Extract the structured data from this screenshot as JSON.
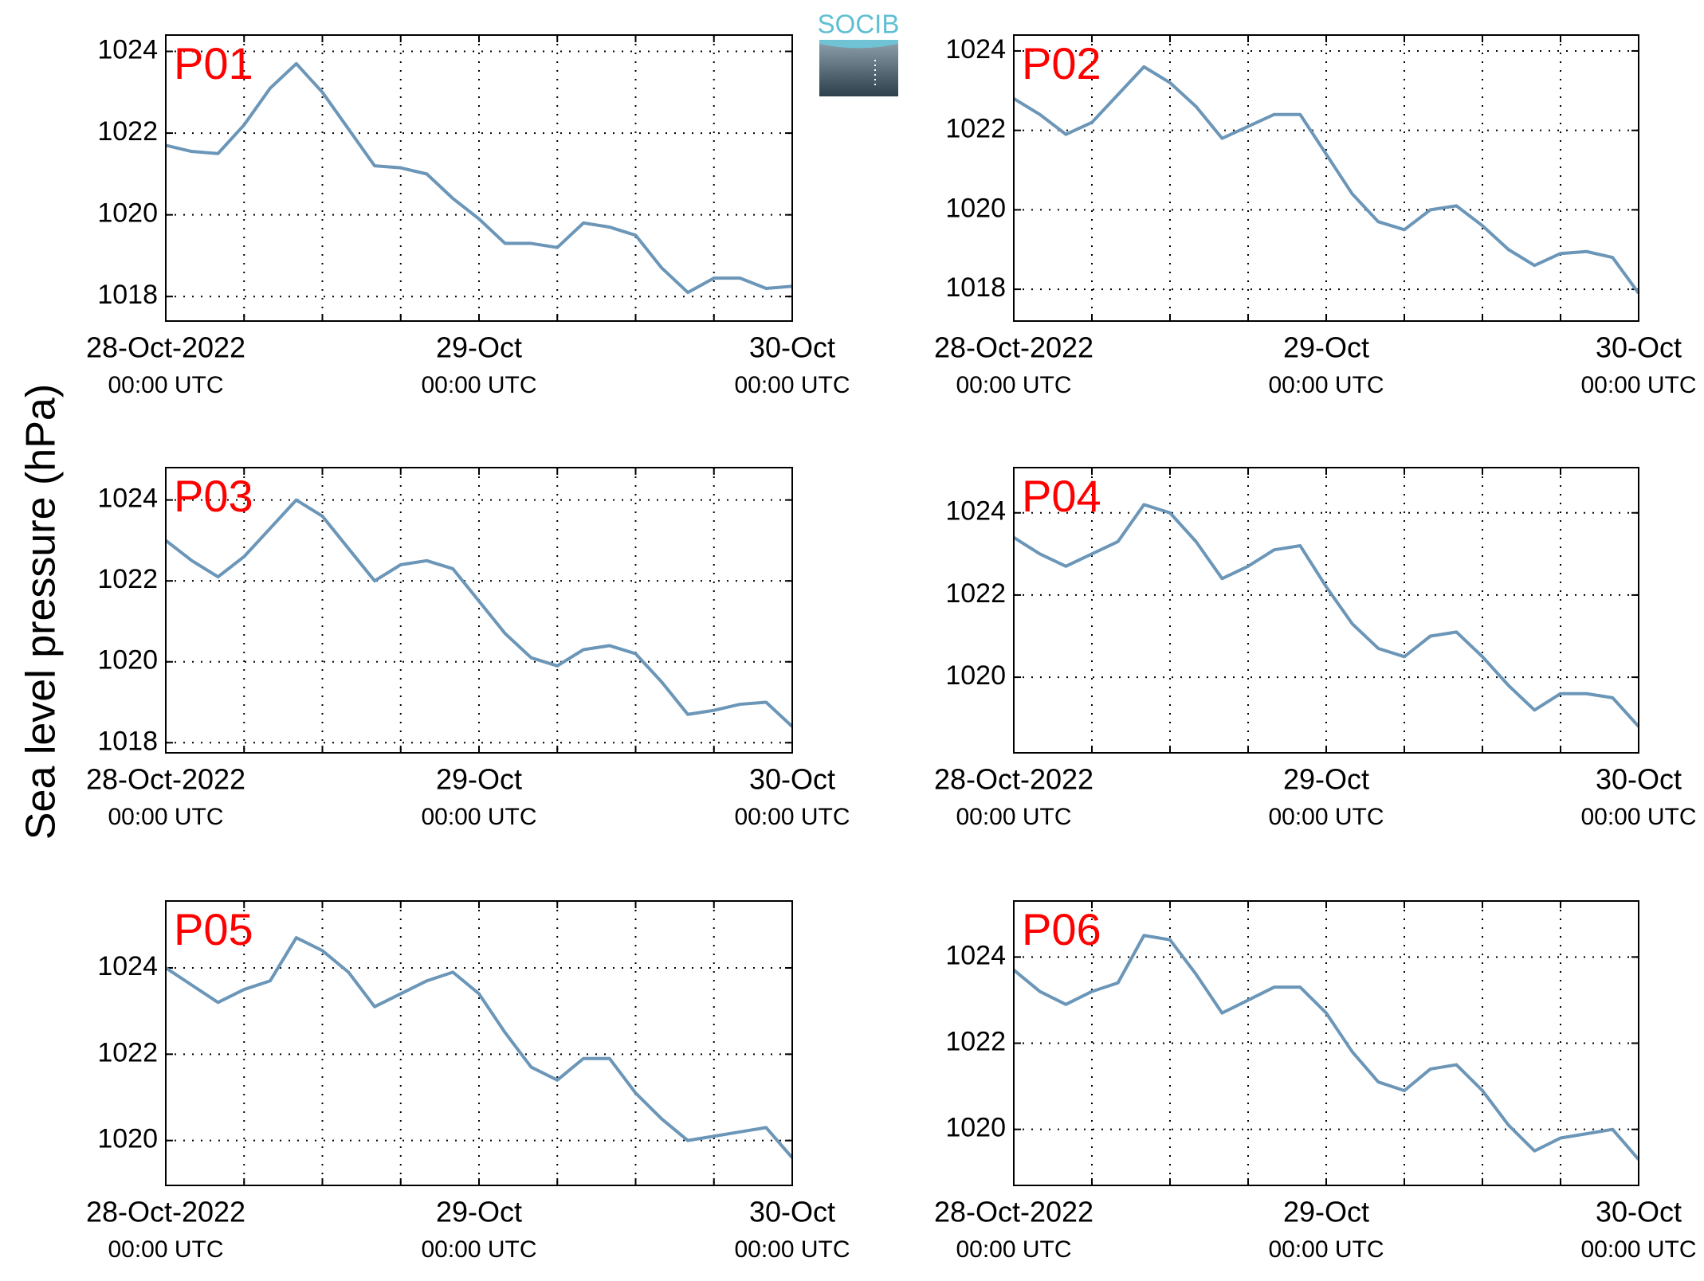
{
  "ylabel": "Sea level pressure (hPa)",
  "logo": "SOCIB",
  "chart_data": [
    {
      "type": "line",
      "title": "P01",
      "color": "#6b96b8",
      "grid": true,
      "x": [
        "2022-10-28 00:00",
        "2022-10-28 02:00",
        "2022-10-28 04:00",
        "2022-10-28 06:00",
        "2022-10-28 08:00",
        "2022-10-28 10:00",
        "2022-10-28 12:00",
        "2022-10-28 14:00",
        "2022-10-28 16:00",
        "2022-10-28 18:00",
        "2022-10-28 20:00",
        "2022-10-28 22:00",
        "2022-10-29 00:00",
        "2022-10-29 02:00",
        "2022-10-29 04:00",
        "2022-10-29 06:00",
        "2022-10-29 08:00",
        "2022-10-29 10:00",
        "2022-10-29 12:00",
        "2022-10-29 14:00",
        "2022-10-29 16:00",
        "2022-10-29 18:00",
        "2022-10-29 20:00",
        "2022-10-29 22:00",
        "2022-10-30 00:00"
      ],
      "values": [
        1021.7,
        1021.55,
        1021.5,
        1022.2,
        1023.1,
        1023.7,
        1023.0,
        1022.1,
        1021.2,
        1021.15,
        1021.0,
        1020.4,
        1019.9,
        1019.3,
        1019.3,
        1019.2,
        1019.8,
        1019.7,
        1019.5,
        1018.7,
        1018.1,
        1018.45,
        1018.45,
        1018.2,
        1018.25
      ],
      "xlim": [
        "2022-10-28 00:00",
        "2022-10-30 00:00"
      ],
      "ylim": [
        1017.4,
        1024.4
      ],
      "yticks": [
        1018,
        1020,
        1022,
        1024
      ],
      "xticks": [
        {
          "value": "2022-10-28 00:00",
          "label": [
            "28-Oct-2022",
            "00:00 UTC"
          ]
        },
        {
          "value": "2022-10-28 06:00",
          "label": null
        },
        {
          "value": "2022-10-28 12:00",
          "label": null
        },
        {
          "value": "2022-10-28 18:00",
          "label": null
        },
        {
          "value": "2022-10-29 00:00",
          "label": [
            "29-Oct",
            "00:00 UTC"
          ]
        },
        {
          "value": "2022-10-29 06:00",
          "label": null
        },
        {
          "value": "2022-10-29 12:00",
          "label": null
        },
        {
          "value": "2022-10-29 18:00",
          "label": null
        },
        {
          "value": "2022-10-30 00:00",
          "label": [
            "30-Oct",
            "00:00 UTC"
          ]
        }
      ]
    },
    {
      "type": "line",
      "title": "P02",
      "color": "#6b96b8",
      "grid": true,
      "x": [
        "2022-10-28 00:00",
        "2022-10-28 02:00",
        "2022-10-28 04:00",
        "2022-10-28 06:00",
        "2022-10-28 08:00",
        "2022-10-28 10:00",
        "2022-10-28 12:00",
        "2022-10-28 14:00",
        "2022-10-28 16:00",
        "2022-10-28 18:00",
        "2022-10-28 20:00",
        "2022-10-28 22:00",
        "2022-10-29 00:00",
        "2022-10-29 02:00",
        "2022-10-29 04:00",
        "2022-10-29 06:00",
        "2022-10-29 08:00",
        "2022-10-29 10:00",
        "2022-10-29 12:00",
        "2022-10-29 14:00",
        "2022-10-29 16:00",
        "2022-10-29 18:00",
        "2022-10-29 20:00",
        "2022-10-29 22:00",
        "2022-10-30 00:00"
      ],
      "values": [
        1022.8,
        1022.4,
        1021.9,
        1022.2,
        1022.9,
        1023.6,
        1023.2,
        1022.6,
        1021.8,
        1022.1,
        1022.4,
        1022.4,
        1021.4,
        1020.4,
        1019.7,
        1019.5,
        1020.0,
        1020.1,
        1019.6,
        1019.0,
        1018.6,
        1018.9,
        1018.95,
        1018.8,
        1017.9
      ],
      "xlim": [
        "2022-10-28 00:00",
        "2022-10-30 00:00"
      ],
      "ylim": [
        1017.2,
        1024.4
      ],
      "yticks": [
        1018,
        1020,
        1022,
        1024
      ],
      "xticks": [
        {
          "value": "2022-10-28 00:00",
          "label": [
            "28-Oct-2022",
            "00:00 UTC"
          ]
        },
        {
          "value": "2022-10-28 06:00",
          "label": null
        },
        {
          "value": "2022-10-28 12:00",
          "label": null
        },
        {
          "value": "2022-10-28 18:00",
          "label": null
        },
        {
          "value": "2022-10-29 00:00",
          "label": [
            "29-Oct",
            "00:00 UTC"
          ]
        },
        {
          "value": "2022-10-29 06:00",
          "label": null
        },
        {
          "value": "2022-10-29 12:00",
          "label": null
        },
        {
          "value": "2022-10-29 18:00",
          "label": null
        },
        {
          "value": "2022-10-30 00:00",
          "label": [
            "30-Oct",
            "00:00 UTC"
          ]
        }
      ]
    },
    {
      "type": "line",
      "title": "P03",
      "color": "#6b96b8",
      "grid": true,
      "x": [
        "2022-10-28 00:00",
        "2022-10-28 02:00",
        "2022-10-28 04:00",
        "2022-10-28 06:00",
        "2022-10-28 08:00",
        "2022-10-28 10:00",
        "2022-10-28 12:00",
        "2022-10-28 14:00",
        "2022-10-28 16:00",
        "2022-10-28 18:00",
        "2022-10-28 20:00",
        "2022-10-28 22:00",
        "2022-10-29 00:00",
        "2022-10-29 02:00",
        "2022-10-29 04:00",
        "2022-10-29 06:00",
        "2022-10-29 08:00",
        "2022-10-29 10:00",
        "2022-10-29 12:00",
        "2022-10-29 14:00",
        "2022-10-29 16:00",
        "2022-10-29 18:00",
        "2022-10-29 20:00",
        "2022-10-29 22:00",
        "2022-10-30 00:00"
      ],
      "values": [
        1023.0,
        1022.5,
        1022.1,
        1022.6,
        1023.3,
        1024.0,
        1023.6,
        1022.8,
        1022.0,
        1022.4,
        1022.5,
        1022.3,
        1021.5,
        1020.7,
        1020.1,
        1019.9,
        1020.3,
        1020.4,
        1020.2,
        1019.5,
        1018.7,
        1018.8,
        1018.95,
        1019.0,
        1018.4
      ],
      "xlim": [
        "2022-10-28 00:00",
        "2022-10-30 00:00"
      ],
      "ylim": [
        1017.75,
        1024.8
      ],
      "yticks": [
        1018,
        1020,
        1022,
        1024
      ],
      "xticks": [
        {
          "value": "2022-10-28 00:00",
          "label": [
            "28-Oct-2022",
            "00:00 UTC"
          ]
        },
        {
          "value": "2022-10-28 06:00",
          "label": null
        },
        {
          "value": "2022-10-28 12:00",
          "label": null
        },
        {
          "value": "2022-10-28 18:00",
          "label": null
        },
        {
          "value": "2022-10-29 00:00",
          "label": [
            "29-Oct",
            "00:00 UTC"
          ]
        },
        {
          "value": "2022-10-29 06:00",
          "label": null
        },
        {
          "value": "2022-10-29 12:00",
          "label": null
        },
        {
          "value": "2022-10-29 18:00",
          "label": null
        },
        {
          "value": "2022-10-30 00:00",
          "label": [
            "30-Oct",
            "00:00 UTC"
          ]
        }
      ]
    },
    {
      "type": "line",
      "title": "P04",
      "color": "#6b96b8",
      "grid": true,
      "x": [
        "2022-10-28 00:00",
        "2022-10-28 02:00",
        "2022-10-28 04:00",
        "2022-10-28 06:00",
        "2022-10-28 08:00",
        "2022-10-28 10:00",
        "2022-10-28 12:00",
        "2022-10-28 14:00",
        "2022-10-28 16:00",
        "2022-10-28 18:00",
        "2022-10-28 20:00",
        "2022-10-28 22:00",
        "2022-10-29 00:00",
        "2022-10-29 02:00",
        "2022-10-29 04:00",
        "2022-10-29 06:00",
        "2022-10-29 08:00",
        "2022-10-29 10:00",
        "2022-10-29 12:00",
        "2022-10-29 14:00",
        "2022-10-29 16:00",
        "2022-10-29 18:00",
        "2022-10-29 20:00",
        "2022-10-29 22:00",
        "2022-10-30 00:00"
      ],
      "values": [
        1023.4,
        1023.0,
        1022.7,
        1023.0,
        1023.3,
        1024.2,
        1024.0,
        1023.3,
        1022.4,
        1022.7,
        1023.1,
        1023.2,
        1022.2,
        1021.3,
        1020.7,
        1020.5,
        1021.0,
        1021.1,
        1020.5,
        1019.8,
        1019.2,
        1019.6,
        1019.6,
        1019.5,
        1018.8
      ],
      "xlim": [
        "2022-10-28 00:00",
        "2022-10-30 00:00"
      ],
      "ylim": [
        1018.16,
        1025.1
      ],
      "yticks": [
        1020,
        1022,
        1024
      ],
      "xticks": [
        {
          "value": "2022-10-28 00:00",
          "label": [
            "28-Oct-2022",
            "00:00 UTC"
          ]
        },
        {
          "value": "2022-10-28 06:00",
          "label": null
        },
        {
          "value": "2022-10-28 12:00",
          "label": null
        },
        {
          "value": "2022-10-28 18:00",
          "label": null
        },
        {
          "value": "2022-10-29 00:00",
          "label": [
            "29-Oct",
            "00:00 UTC"
          ]
        },
        {
          "value": "2022-10-29 06:00",
          "label": null
        },
        {
          "value": "2022-10-29 12:00",
          "label": null
        },
        {
          "value": "2022-10-29 18:00",
          "label": null
        },
        {
          "value": "2022-10-30 00:00",
          "label": [
            "30-Oct",
            "00:00 UTC"
          ]
        }
      ]
    },
    {
      "type": "line",
      "title": "P05",
      "color": "#6b96b8",
      "grid": true,
      "x": [
        "2022-10-28 00:00",
        "2022-10-28 02:00",
        "2022-10-28 04:00",
        "2022-10-28 06:00",
        "2022-10-28 08:00",
        "2022-10-28 10:00",
        "2022-10-28 12:00",
        "2022-10-28 14:00",
        "2022-10-28 16:00",
        "2022-10-28 18:00",
        "2022-10-28 20:00",
        "2022-10-28 22:00",
        "2022-10-29 00:00",
        "2022-10-29 02:00",
        "2022-10-29 04:00",
        "2022-10-29 06:00",
        "2022-10-29 08:00",
        "2022-10-29 10:00",
        "2022-10-29 12:00",
        "2022-10-29 14:00",
        "2022-10-29 16:00",
        "2022-10-29 18:00",
        "2022-10-29 20:00",
        "2022-10-29 22:00",
        "2022-10-30 00:00"
      ],
      "values": [
        1024.0,
        1023.6,
        1023.2,
        1023.5,
        1023.7,
        1024.7,
        1024.4,
        1023.9,
        1023.1,
        1023.4,
        1023.7,
        1023.9,
        1023.4,
        1022.5,
        1021.7,
        1021.4,
        1021.9,
        1021.9,
        1021.1,
        1020.5,
        1020.0,
        1020.1,
        1020.2,
        1020.3,
        1019.6
      ],
      "xlim": [
        "2022-10-28 00:00",
        "2022-10-30 00:00"
      ],
      "ylim": [
        1018.96,
        1025.55
      ],
      "yticks": [
        1020,
        1022,
        1024
      ],
      "xticks": [
        {
          "value": "2022-10-28 00:00",
          "label": [
            "28-Oct-2022",
            "00:00 UTC"
          ]
        },
        {
          "value": "2022-10-28 06:00",
          "label": null
        },
        {
          "value": "2022-10-28 12:00",
          "label": null
        },
        {
          "value": "2022-10-28 18:00",
          "label": null
        },
        {
          "value": "2022-10-29 00:00",
          "label": [
            "29-Oct",
            "00:00 UTC"
          ]
        },
        {
          "value": "2022-10-29 06:00",
          "label": null
        },
        {
          "value": "2022-10-29 12:00",
          "label": null
        },
        {
          "value": "2022-10-29 18:00",
          "label": null
        },
        {
          "value": "2022-10-30 00:00",
          "label": [
            "30-Oct",
            "00:00 UTC"
          ]
        }
      ]
    },
    {
      "type": "line",
      "title": "P06",
      "color": "#6b96b8",
      "grid": true,
      "x": [
        "2022-10-28 00:00",
        "2022-10-28 02:00",
        "2022-10-28 04:00",
        "2022-10-28 06:00",
        "2022-10-28 08:00",
        "2022-10-28 10:00",
        "2022-10-28 12:00",
        "2022-10-28 14:00",
        "2022-10-28 16:00",
        "2022-10-28 18:00",
        "2022-10-28 20:00",
        "2022-10-28 22:00",
        "2022-10-29 00:00",
        "2022-10-29 02:00",
        "2022-10-29 04:00",
        "2022-10-29 06:00",
        "2022-10-29 08:00",
        "2022-10-29 10:00",
        "2022-10-29 12:00",
        "2022-10-29 14:00",
        "2022-10-29 16:00",
        "2022-10-29 18:00",
        "2022-10-29 20:00",
        "2022-10-29 22:00",
        "2022-10-30 00:00"
      ],
      "values": [
        1023.7,
        1023.2,
        1022.9,
        1023.2,
        1023.4,
        1024.5,
        1024.4,
        1023.6,
        1022.7,
        1023.0,
        1023.3,
        1023.3,
        1022.7,
        1021.8,
        1021.1,
        1020.9,
        1021.4,
        1021.5,
        1020.9,
        1020.1,
        1019.5,
        1019.8,
        1019.9,
        1020.0,
        1019.3
      ],
      "xlim": [
        "2022-10-28 00:00",
        "2022-10-30 00:00"
      ],
      "ylim": [
        1018.7,
        1025.3
      ],
      "yticks": [
        1020,
        1022,
        1024
      ],
      "xticks": [
        {
          "value": "2022-10-28 00:00",
          "label": [
            "28-Oct-2022",
            "00:00 UTC"
          ]
        },
        {
          "value": "2022-10-28 06:00",
          "label": null
        },
        {
          "value": "2022-10-28 12:00",
          "label": null
        },
        {
          "value": "2022-10-28 18:00",
          "label": null
        },
        {
          "value": "2022-10-29 00:00",
          "label": [
            "29-Oct",
            "00:00 UTC"
          ]
        },
        {
          "value": "2022-10-29 06:00",
          "label": null
        },
        {
          "value": "2022-10-29 12:00",
          "label": null
        },
        {
          "value": "2022-10-29 18:00",
          "label": null
        },
        {
          "value": "2022-10-30 00:00",
          "label": [
            "30-Oct",
            "00:00 UTC"
          ]
        }
      ]
    }
  ]
}
